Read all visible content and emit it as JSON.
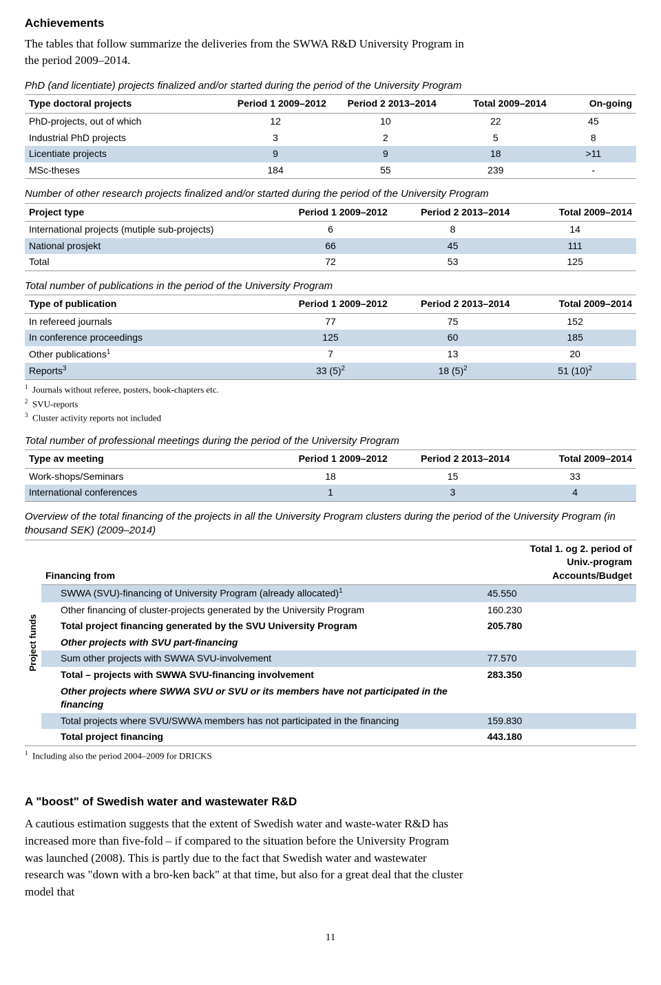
{
  "heading": "Achievements",
  "intro": "The tables that follow summarize the deliveries from the SWWA R&D University Program in the period 2009–2014.",
  "table1": {
    "caption": "PhD (and licentiate) projects finalized and/or started during the period of the University Program",
    "headers": [
      "Type doctoral projects",
      "Period 1 2009–2012",
      "Period 2 2013–2014",
      "Total 2009–2014",
      "On-going"
    ],
    "rows": [
      {
        "label": "PhD-projects, out of which",
        "c": [
          "12",
          "10",
          "22",
          "45"
        ],
        "shade": false
      },
      {
        "label": "Industrial PhD projects",
        "c": [
          "3",
          "2",
          "5",
          "8"
        ],
        "shade": false
      },
      {
        "label": "Licentiate projects",
        "c": [
          "9",
          "9",
          "18",
          ">11"
        ],
        "shade": true
      },
      {
        "label": "MSc-theses",
        "c": [
          "184",
          "55",
          "239",
          "-"
        ],
        "shade": false
      }
    ]
  },
  "table2": {
    "caption": "Number of other research projects finalized and/or started during the period of the University Program",
    "headers": [
      "Project type",
      "Period 1 2009–2012",
      "Period 2 2013–2014",
      "Total 2009–2014"
    ],
    "rows": [
      {
        "label": "International projects (mutiple sub-projects)",
        "c": [
          "6",
          "8",
          "14"
        ],
        "shade": false
      },
      {
        "label": "National prosjekt",
        "c": [
          "66",
          "45",
          "111"
        ],
        "shade": true
      },
      {
        "label": "Total",
        "c": [
          "72",
          "53",
          "125"
        ],
        "shade": false
      }
    ]
  },
  "table3": {
    "caption": "Total number of publications in the period of the University Program",
    "headers": [
      "Type of publication",
      "Period 1 2009–2012",
      "Period 2 2013–2014",
      "Total 2009–2014"
    ],
    "rows": [
      {
        "label": "In refereed journals",
        "c": [
          "77",
          "75",
          "152"
        ],
        "shade": false
      },
      {
        "label": "In conference proceedings",
        "c": [
          "125",
          "60",
          "185"
        ],
        "shade": true
      },
      {
        "label_html": "Other publications<sup>1</sup>",
        "c": [
          "7",
          "13",
          "20"
        ],
        "shade": false
      },
      {
        "label_html": "Reports<sup>3</sup>",
        "c_html": [
          "33 (5)<sup>2</sup>",
          "18 (5)<sup>2</sup>",
          "51 (10)<sup>2</sup>"
        ],
        "shade": true
      }
    ],
    "footnotes": [
      "Journals without referee, posters, book-chapters etc.",
      "SVU-reports",
      "Cluster activity reports not included"
    ]
  },
  "table4": {
    "caption": "Total number of professional meetings during the period of the University Program",
    "headers": [
      "Type av meeting",
      "Period 1 2009–2012",
      "Period 2 2013–2014",
      "Total 2009–2014"
    ],
    "rows": [
      {
        "label": "Work-shops/Seminars",
        "c": [
          "18",
          "15",
          "33"
        ],
        "shade": false
      },
      {
        "label": "International conferences",
        "c": [
          "1",
          "3",
          "4"
        ],
        "shade": true
      }
    ]
  },
  "financing": {
    "caption": "Overview of the total financing of the projects in all the University Program clusters during the period of the University Program (in thousand SEK) (2009–2014)",
    "side_label": "Project funds",
    "headers": [
      "Financing from",
      "Total 1. og 2. period of Univ.-program Accounts/Budget"
    ],
    "rows": [
      {
        "label_html": "SWWA (SVU)-financing of University Program (already allocated)<sup>1</sup>",
        "val": "45.550",
        "shade": true,
        "bold": false
      },
      {
        "label": "Other financing of cluster-projects generated by the University Program",
        "val": "160.230",
        "shade": false,
        "bold": false
      },
      {
        "label": "Total project financing generated by the SVU University Program",
        "val": "205.780",
        "shade": false,
        "bold": true
      },
      {
        "label_html": "<i>Other projects with SVU part-financing</i>",
        "val": "",
        "shade": false,
        "bold": true
      },
      {
        "label": "Sum other projects with SWWA SVU-involvement",
        "val": "77.570",
        "shade": true,
        "bold": false
      },
      {
        "label": "Total – projects with SWWA SVU-financing involvement",
        "val": "283.350",
        "shade": false,
        "bold": true
      },
      {
        "label_html": "<i>Other projects where SWWA SVU or SVU or its members have not participated in the financing</i>",
        "val": "",
        "shade": false,
        "bold": true
      },
      {
        "label": "Total projects where SVU/SWWA members has not participated in the financing",
        "val": "159.830",
        "shade": true,
        "bold": false
      },
      {
        "label": "Total project financing",
        "val": "443.180",
        "shade": false,
        "bold": true
      }
    ],
    "footnote": "Including also the period 2004–2009 for DRICKS"
  },
  "sub_heading": "A \"boost\" of Swedish water and wastewater R&D",
  "paragraph": "A cautious estimation suggests that the extent of Swedish water and waste-water R&D has increased more than five-fold – if compared to the situation before the University Program was launched (2008). This is partly due to the fact that Swedish water and wastewater research was \"down with a bro-ken back\" at that time, but also for a great deal that the cluster model that",
  "page_number": "11",
  "colors": {
    "shade": "#c9d9e8",
    "border": "#999999"
  }
}
